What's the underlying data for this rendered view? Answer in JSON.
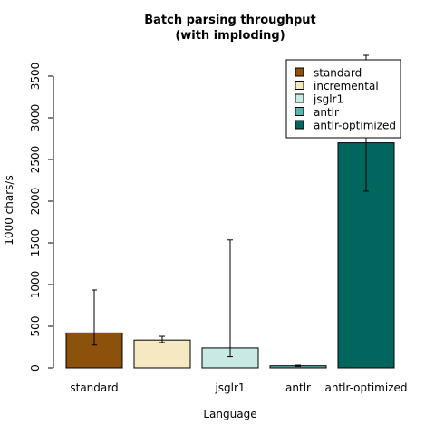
{
  "chart_data": {
    "type": "bar",
    "title": "Batch parsing throughput",
    "subtitle": "(with imploding)",
    "xlabel": "Language",
    "ylabel": "1000 chars/s",
    "ylim": [
      0,
      3500
    ],
    "yticks": [
      0,
      500,
      1000,
      1500,
      2000,
      2500,
      3000,
      3500
    ],
    "categories": [
      "standard",
      "incremental",
      "jsglr1",
      "antlr",
      "antlr-optimized"
    ],
    "shown_category_labels": [
      "standard",
      "",
      "jsglr1",
      "antlr",
      "antlr-optimized"
    ],
    "values": [
      420,
      335,
      240,
      25,
      2700
    ],
    "error_low": [
      275,
      305,
      135,
      18,
      2120
    ],
    "error_high": [
      935,
      380,
      1535,
      32,
      3750
    ],
    "colors": [
      "#8c510a",
      "#f6e8c3",
      "#c7eae5",
      "#5ab4ac",
      "#01665e"
    ],
    "legend": {
      "placement": "top-right",
      "entries": [
        "standard",
        "incremental",
        "jsglr1",
        "antlr",
        "antlr-optimized"
      ]
    },
    "grid": false
  }
}
